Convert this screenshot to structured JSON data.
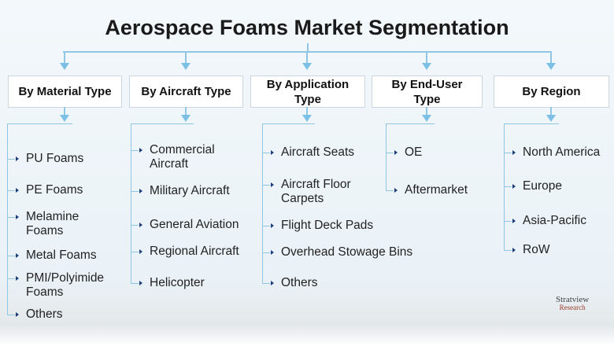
{
  "title": "Aerospace Foams Market Segmentation",
  "columns": [
    {
      "header": "By Material Type",
      "items": [
        "PU Foams",
        "PE Foams",
        "Melamine\nFoams",
        "Metal Foams",
        "PMI/Polyimide\nFoams",
        "Others"
      ]
    },
    {
      "header": "By Aircraft Type",
      "items": [
        "Commercial\nAircraft",
        "Military Aircraft",
        "General Aviation",
        "Regional Aircraft",
        "Helicopter"
      ]
    },
    {
      "header": "By Application\nType",
      "items": [
        "Aircraft Seats",
        "Aircraft Floor\nCarpets",
        "Flight Deck Pads",
        "Overhead Stowage Bins",
        "Others"
      ]
    },
    {
      "header": "By End-User\nType",
      "items": [
        "OE",
        "Aftermarket"
      ]
    },
    {
      "header": "By Region",
      "items": [
        "North America",
        "Europe",
        "Asia-Pacific",
        "RoW"
      ]
    }
  ],
  "logo": {
    "name": "Stratview",
    "sub": "Research"
  },
  "colors": {
    "connector": "#8fc6e4",
    "arrow": "#7cc0e6",
    "bullet": "#1a3d7a"
  }
}
